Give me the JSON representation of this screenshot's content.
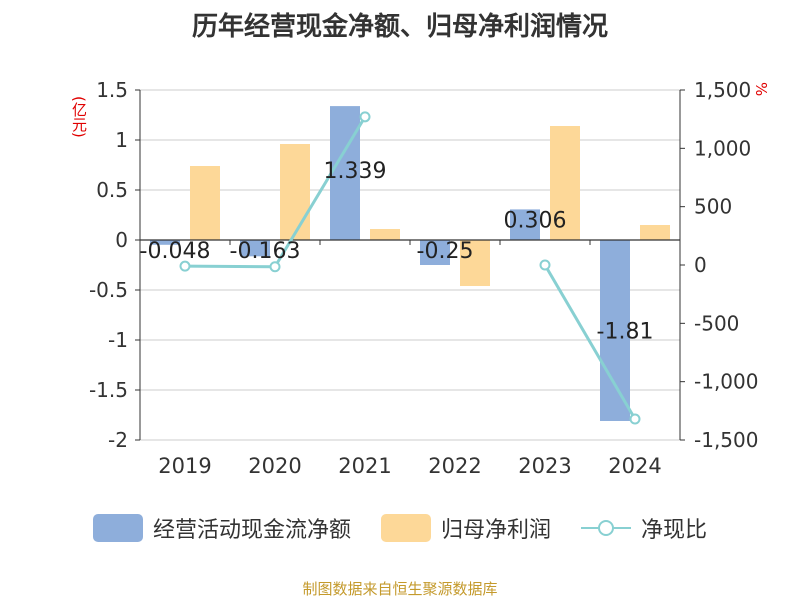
{
  "colors": {
    "operating_cf": "#8eaedb",
    "net_profit": "#fdd898",
    "ratio_line": "#88d0d2",
    "unit_text": "#e00000",
    "source_text": "#c49a2c"
  },
  "chart_data": {
    "type": "bar",
    "title": "历年经营现金净额、归母净利润情况",
    "left_unit": "(亿元)",
    "right_unit": "%",
    "categories": [
      "2019",
      "2020",
      "2021",
      "2022",
      "2023",
      "2024"
    ],
    "series": [
      {
        "name": "经营活动现金流净额",
        "type": "bar",
        "axis": "left",
        "values": [
          -0.048,
          -0.163,
          1.339,
          -0.25,
          0.306,
          -1.81
        ],
        "labels": [
          "-0.048",
          "-0.163",
          "1.339",
          "-0.25",
          "0.306",
          "-1.81"
        ]
      },
      {
        "name": "归母净利润",
        "type": "bar",
        "axis": "left",
        "values": [
          0.74,
          0.96,
          0.11,
          -0.46,
          1.14,
          0.15
        ]
      },
      {
        "name": "净现比",
        "type": "line",
        "axis": "right",
        "values": [
          -10,
          -15,
          1270,
          null,
          0,
          -1320
        ]
      }
    ],
    "left_axis": {
      "ylim": [
        -2,
        1.5
      ],
      "ticks": [
        -2,
        -1.5,
        -1,
        -0.5,
        0,
        0.5,
        1,
        1.5
      ],
      "tick_labels": [
        "-2",
        "-1.5",
        "-1",
        "-0.5",
        "0",
        "0.5",
        "1",
        "1.5"
      ]
    },
    "right_axis": {
      "ylim": [
        -1500,
        1500
      ],
      "ticks": [
        -1500,
        -1000,
        -500,
        0,
        500,
        1000,
        1500
      ],
      "tick_labels": [
        "-1,500",
        "-1,000",
        "-500",
        "0",
        "500",
        "1,000",
        "1,500"
      ]
    },
    "grid": true,
    "legend_position": "bottom"
  },
  "source": "制图数据来自恒生聚源数据库"
}
